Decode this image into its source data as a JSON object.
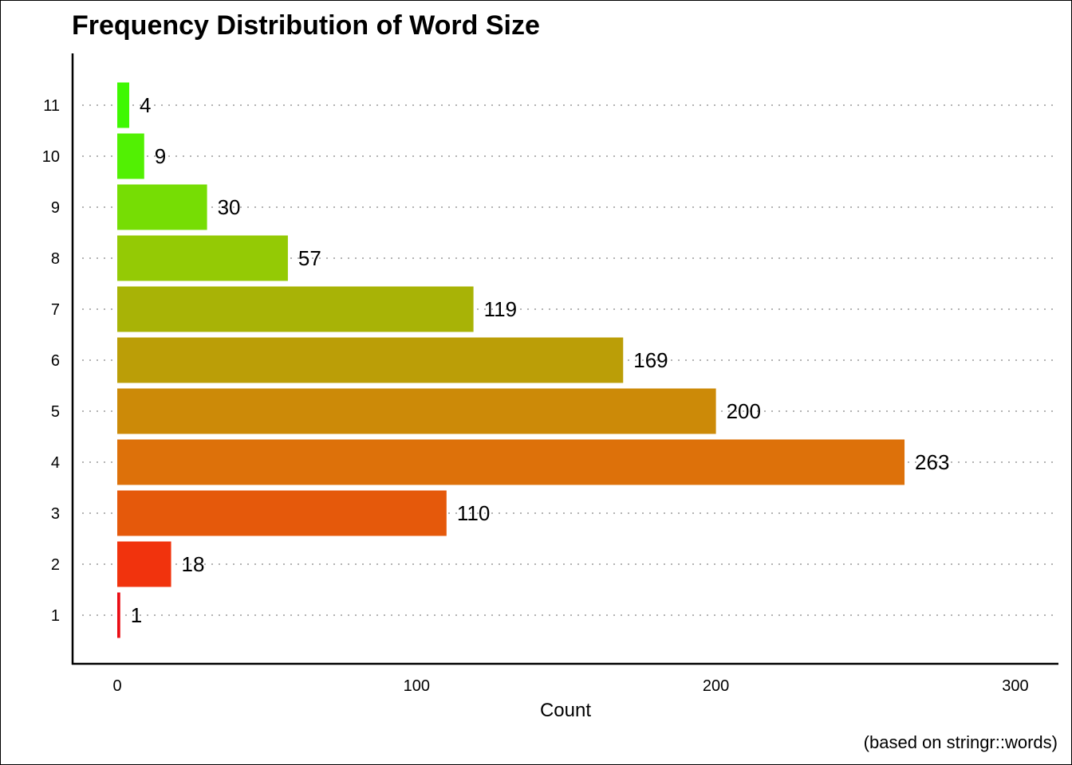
{
  "chart_data": {
    "type": "bar",
    "orientation": "horizontal",
    "title": "Frequency Distribution of Word Size",
    "xlabel": "Count",
    "ylabel": "",
    "caption": "(based on stringr::words)",
    "categories": [
      "1",
      "2",
      "3",
      "4",
      "5",
      "6",
      "7",
      "8",
      "9",
      "10",
      "11"
    ],
    "values": [
      1,
      18,
      110,
      263,
      200,
      169,
      119,
      57,
      30,
      9,
      4
    ],
    "value_labels": [
      "1",
      "18",
      "110",
      "263",
      "200",
      "169",
      "119",
      "57",
      "30",
      "9",
      "4"
    ],
    "colors": [
      "#ea0d14",
      "#f1330d",
      "#e5590b",
      "#dd710a",
      "#cc8a08",
      "#bb9e07",
      "#a8b306",
      "#94ca05",
      "#76dd04",
      "#52f003",
      "#3ff802"
    ],
    "xlim": [
      -15,
      315
    ],
    "xticks": [
      0,
      100,
      200,
      300
    ],
    "xtick_labels": [
      "0",
      "100",
      "200",
      "300"
    ],
    "grid": "horizontal dotted",
    "legend": "none"
  }
}
